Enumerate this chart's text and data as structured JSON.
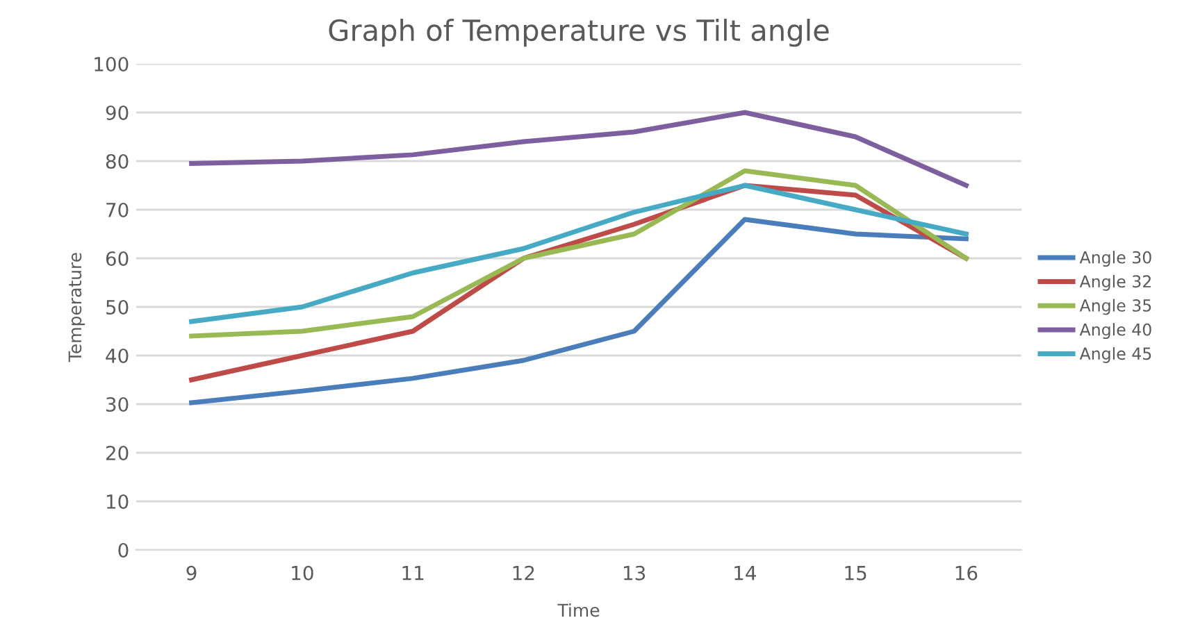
{
  "chart_data": {
    "type": "line",
    "title": "Graph of Temperature vs Tilt angle",
    "xlabel": "Time",
    "ylabel": "Temperature",
    "categories": [
      "9",
      "10",
      "11",
      "12",
      "13",
      "14",
      "15",
      "16"
    ],
    "series": [
      {
        "name": "Angle 30",
        "color": "#4a7ebb",
        "values": [
          30.3,
          32.7,
          35.3,
          39,
          45,
          68,
          65,
          64
        ]
      },
      {
        "name": "Angle 32",
        "color": "#be4b48",
        "values": [
          35,
          40,
          45,
          60,
          67,
          75,
          73,
          60
        ]
      },
      {
        "name": "Angle 35",
        "color": "#98b954",
        "values": [
          44,
          45,
          48,
          60,
          65,
          78,
          75,
          60
        ]
      },
      {
        "name": "Angle 40",
        "color": "#7d5fa0",
        "values": [
          79.5,
          80,
          81.3,
          84,
          86,
          90,
          85,
          75
        ]
      },
      {
        "name": "Angle 45",
        "color": "#46aac5",
        "values": [
          47,
          50,
          57,
          62,
          69.5,
          75,
          70,
          65
        ]
      }
    ],
    "ylim": [
      0,
      100
    ],
    "yticks": [
      0,
      10,
      20,
      30,
      40,
      50,
      60,
      70,
      80,
      90,
      100
    ],
    "grid": "y",
    "legend": "right",
    "marker": "none",
    "line_style": "solid"
  }
}
